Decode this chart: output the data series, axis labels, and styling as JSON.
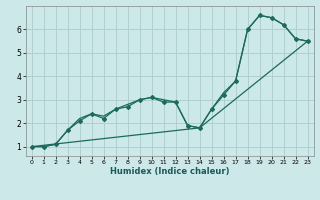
{
  "xlabel": "Humidex (Indice chaleur)",
  "background_color": "#cce8e8",
  "grid_color": "#aacccc",
  "line_color": "#1a6b5a",
  "marker_color": "#1a6b5a",
  "xlim": [
    -0.5,
    23.5
  ],
  "ylim": [
    0.6,
    7.0
  ],
  "xticks": [
    0,
    1,
    2,
    3,
    4,
    5,
    6,
    7,
    8,
    9,
    10,
    11,
    12,
    13,
    14,
    15,
    16,
    17,
    18,
    19,
    20,
    21,
    22,
    23
  ],
  "yticks": [
    1,
    2,
    3,
    4,
    5,
    6
  ],
  "line1_x": [
    0,
    1,
    2,
    3,
    4,
    5,
    6,
    7,
    8,
    9,
    10,
    11,
    12,
    13,
    14,
    15,
    16,
    17,
    18,
    19,
    20,
    21,
    22,
    23
  ],
  "line1_y": [
    1.0,
    1.0,
    1.1,
    1.7,
    2.1,
    2.4,
    2.2,
    2.6,
    2.7,
    3.0,
    3.1,
    2.9,
    2.9,
    1.9,
    1.8,
    2.6,
    3.2,
    3.8,
    6.0,
    6.6,
    6.5,
    6.2,
    5.6,
    5.5
  ],
  "line2_x": [
    0,
    1,
    2,
    3,
    4,
    5,
    6,
    7,
    8,
    9,
    10,
    11,
    12,
    13,
    14,
    15,
    16,
    17,
    18,
    19,
    20,
    21,
    22,
    23
  ],
  "line2_y": [
    1.0,
    1.0,
    1.1,
    1.7,
    2.2,
    2.4,
    2.3,
    2.6,
    2.8,
    3.0,
    3.1,
    3.0,
    2.9,
    1.9,
    1.8,
    2.6,
    3.3,
    3.8,
    6.0,
    6.6,
    6.5,
    6.2,
    5.6,
    5.5
  ],
  "line3_x": [
    0,
    14,
    23
  ],
  "line3_y": [
    1.0,
    1.8,
    5.5
  ]
}
